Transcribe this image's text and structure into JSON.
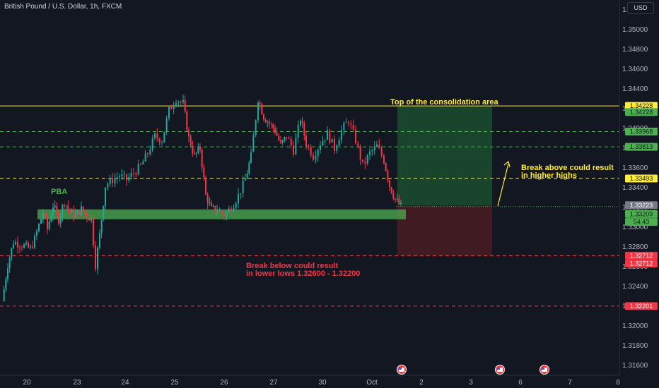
{
  "header": {
    "title": "British Pound / U.S. Dollar, 1h, FXCM",
    "currency_button": "USD"
  },
  "colors": {
    "background": "#131722",
    "up": "#26a69a",
    "down": "#f23645",
    "annotation_yellow": "#ffeb3b",
    "annotation_red": "#f23645",
    "annotation_green": "#4caf50",
    "zone_green": "#1b4d2e",
    "zone_red": "#4a1c22"
  },
  "chart_data": {
    "type": "candlestick",
    "ylim": [
      1.315,
      1.353
    ],
    "y_ticks": [
      "1.35200",
      "1.35000",
      "1.34800",
      "1.34600",
      "1.34400",
      "1.34200",
      "1.34000",
      "1.33800",
      "1.33600",
      "1.33400",
      "1.33200",
      "1.33000",
      "1.32800",
      "1.32600",
      "1.32400",
      "1.32200",
      "1.32000",
      "1.31800",
      "1.31600"
    ],
    "x_ticks": [
      "20",
      "23",
      "24",
      "25",
      "26",
      "27",
      "30",
      "Oct",
      "2",
      "3",
      "6",
      "7",
      "8"
    ],
    "grid": false,
    "levels": [
      {
        "price": 1.34228,
        "label": "1.34228",
        "style": "solid",
        "color": "#ffeb3b"
      },
      {
        "price": 1.33968,
        "label": "1.33968",
        "style": "dashed",
        "color": "#4caf50"
      },
      {
        "price": 1.33813,
        "label": "1.33813",
        "style": "dashed",
        "color": "#4caf50"
      },
      {
        "price": 1.33493,
        "label": "1.33493",
        "style": "dashed",
        "color": "#ffeb3b"
      },
      {
        "price": 1.32712,
        "label": "1.32712",
        "style": "dashed",
        "color": "#f23645"
      },
      {
        "price": 1.32201,
        "label": "1.32201",
        "style": "dashed",
        "color": "#f23645"
      }
    ],
    "price_tags": [
      {
        "label": "1.34228",
        "price": 1.34228,
        "bg": "#ffeb3b",
        "fg": "#131722"
      },
      {
        "label": "1.34228",
        "price": 1.34165,
        "bg": "#4caf50",
        "fg": "#131722"
      },
      {
        "label": "1.33968",
        "price": 1.33968,
        "bg": "#4caf50",
        "fg": "#131722"
      },
      {
        "label": "1.33813",
        "price": 1.33813,
        "bg": "#4caf50",
        "fg": "#131722"
      },
      {
        "label": "1.33493",
        "price": 1.33493,
        "bg": "#ffeb3b",
        "fg": "#131722"
      },
      {
        "label": "1.33223",
        "price": 1.33223,
        "bg": "#787b86",
        "fg": "#ffffff"
      },
      {
        "label": "1.33209",
        "price": 1.33133,
        "bg": "#4caf50",
        "fg": "#131722"
      },
      {
        "label": "54:43",
        "price": 1.33053,
        "bg": "#4caf50",
        "fg": "#131722"
      },
      {
        "label": "1.32712",
        "price": 1.32712,
        "bg": "#f23645",
        "fg": "#ffffff"
      },
      {
        "label": "1.32712",
        "price": 1.32632,
        "bg": "#f23645",
        "fg": "#ffffff"
      },
      {
        "label": "1.32201",
        "price": 1.32201,
        "bg": "#f23645",
        "fg": "#ffffff"
      }
    ],
    "support_zone": {
      "from": 1.3308,
      "to": 1.3318
    },
    "target_zone": {
      "from": 1.3322,
      "to": 1.34228
    },
    "stop_zone": {
      "from": 1.32712,
      "to": 1.3322
    },
    "annotations": {
      "top": "Top of the consolidation area",
      "pba": "PBA",
      "break_above_1": "Break above could result",
      "break_above_2": "in higher highs",
      "break_below_1": "Break below could result",
      "break_below_2": "in lower lows 1.32600 - 1.32200"
    },
    "series": [
      {
        "x": 0,
        "close": 1.3225
      },
      {
        "x": 8,
        "close": 1.3262
      },
      {
        "x": 16,
        "close": 1.3285
      },
      {
        "x": 28,
        "close": 1.3282
      },
      {
        "x": 40,
        "close": 1.3278
      },
      {
        "x": 46,
        "close": 1.3288
      },
      {
        "x": 52,
        "close": 1.3302
      },
      {
        "x": 58,
        "close": 1.3315
      },
      {
        "x": 64,
        "close": 1.3298
      },
      {
        "x": 72,
        "close": 1.3322
      },
      {
        "x": 80,
        "close": 1.3308
      },
      {
        "x": 88,
        "close": 1.3326
      },
      {
        "x": 96,
        "close": 1.3315
      },
      {
        "x": 104,
        "close": 1.3312
      },
      {
        "x": 112,
        "close": 1.3318
      },
      {
        "x": 120,
        "close": 1.3312
      },
      {
        "x": 126,
        "close": 1.3308
      },
      {
        "x": 132,
        "close": 1.3262
      },
      {
        "x": 138,
        "close": 1.3292
      },
      {
        "x": 146,
        "close": 1.3342
      },
      {
        "x": 156,
        "close": 1.3348
      },
      {
        "x": 166,
        "close": 1.3352
      },
      {
        "x": 176,
        "close": 1.3348
      },
      {
        "x": 186,
        "close": 1.3355
      },
      {
        "x": 196,
        "close": 1.3362
      },
      {
        "x": 206,
        "close": 1.3375
      },
      {
        "x": 216,
        "close": 1.3392
      },
      {
        "x": 226,
        "close": 1.3388
      },
      {
        "x": 236,
        "close": 1.3418
      },
      {
        "x": 246,
        "close": 1.343
      },
      {
        "x": 256,
        "close": 1.3425
      },
      {
        "x": 264,
        "close": 1.339
      },
      {
        "x": 272,
        "close": 1.3372
      },
      {
        "x": 280,
        "close": 1.338
      },
      {
        "x": 288,
        "close": 1.3332
      },
      {
        "x": 296,
        "close": 1.3318
      },
      {
        "x": 304,
        "close": 1.3318
      },
      {
        "x": 314,
        "close": 1.3312
      },
      {
        "x": 324,
        "close": 1.332
      },
      {
        "x": 334,
        "close": 1.3332
      },
      {
        "x": 344,
        "close": 1.3348
      },
      {
        "x": 352,
        "close": 1.3372
      },
      {
        "x": 362,
        "close": 1.343
      },
      {
        "x": 370,
        "close": 1.3412
      },
      {
        "x": 378,
        "close": 1.3405
      },
      {
        "x": 386,
        "close": 1.3398
      },
      {
        "x": 394,
        "close": 1.3383
      },
      {
        "x": 402,
        "close": 1.3392
      },
      {
        "x": 412,
        "close": 1.3378
      },
      {
        "x": 422,
        "close": 1.341
      },
      {
        "x": 430,
        "close": 1.3385
      },
      {
        "x": 440,
        "close": 1.3372
      },
      {
        "x": 450,
        "close": 1.3385
      },
      {
        "x": 460,
        "close": 1.3395
      },
      {
        "x": 470,
        "close": 1.338
      },
      {
        "x": 480,
        "close": 1.3398
      },
      {
        "x": 490,
        "close": 1.3408
      },
      {
        "x": 500,
        "close": 1.3388
      },
      {
        "x": 510,
        "close": 1.3362
      },
      {
        "x": 520,
        "close": 1.3375
      },
      {
        "x": 530,
        "close": 1.3382
      },
      {
        "x": 540,
        "close": 1.3368
      },
      {
        "x": 548,
        "close": 1.3342
      },
      {
        "x": 556,
        "close": 1.3328
      },
      {
        "x": 564,
        "close": 1.3321
      }
    ]
  }
}
